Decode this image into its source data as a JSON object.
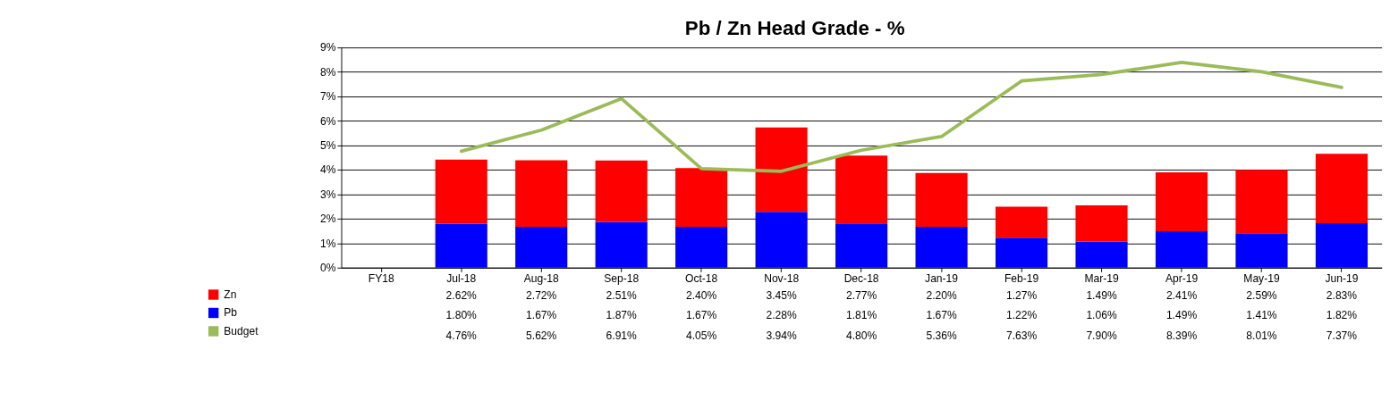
{
  "chart_data": {
    "type": "bar",
    "title": "Pb / Zn Head Grade - %",
    "stacked": true,
    "categories": [
      "FY18",
      "Jul-18",
      "Aug-18",
      "Sep-18",
      "Oct-18",
      "Nov-18",
      "Dec-18",
      "Jan-19",
      "Feb-19",
      "Mar-19",
      "Apr-19",
      "May-19",
      "Jun-19"
    ],
    "series": [
      {
        "name": "Pb",
        "color": "#0000ff",
        "values": [
          null,
          1.8,
          1.67,
          1.87,
          1.67,
          2.28,
          1.81,
          1.67,
          1.22,
          1.06,
          1.49,
          1.41,
          1.82
        ],
        "value_labels": [
          null,
          "1.80%",
          "1.67%",
          "1.87%",
          "1.67%",
          "2.28%",
          "1.81%",
          "1.67%",
          "1.22%",
          "1.06%",
          "1.49%",
          "1.41%",
          "1.82%"
        ]
      },
      {
        "name": "Zn",
        "color": "#ff0000",
        "values": [
          null,
          2.62,
          2.72,
          2.51,
          2.4,
          3.45,
          2.77,
          2.2,
          1.27,
          1.49,
          2.41,
          2.59,
          2.83
        ],
        "value_labels": [
          null,
          "2.62%",
          "2.72%",
          "2.51%",
          "2.40%",
          "3.45%",
          "2.77%",
          "2.20%",
          "1.27%",
          "1.49%",
          "2.41%",
          "2.59%",
          "2.83%"
        ]
      },
      {
        "name": "Budget",
        "type": "line",
        "color": "#9bbb59",
        "values": [
          null,
          4.76,
          5.62,
          6.91,
          4.05,
          3.94,
          4.8,
          5.36,
          7.63,
          7.9,
          8.39,
          8.01,
          7.37
        ],
        "value_labels": [
          null,
          "4.76%",
          "5.62%",
          "6.91%",
          "4.05%",
          "3.94%",
          "4.80%",
          "5.36%",
          "7.63%",
          "7.90%",
          "8.39%",
          "8.01%",
          "7.37%"
        ]
      }
    ],
    "ylim": [
      0,
      9
    ],
    "yticks": [
      {
        "value": 0,
        "label": "0%"
      },
      {
        "value": 1,
        "label": "1%"
      },
      {
        "value": 2,
        "label": "2%"
      },
      {
        "value": 3,
        "label": "3%"
      },
      {
        "value": 4,
        "label": "4%"
      },
      {
        "value": 5,
        "label": "5%"
      },
      {
        "value": 6,
        "label": "6%"
      },
      {
        "value": 7,
        "label": "7%"
      },
      {
        "value": 8,
        "label": "8%"
      },
      {
        "value": 9,
        "label": "9%"
      }
    ],
    "grid": "y",
    "legend": "bottom left",
    "line_style": "solid",
    "marker": "none"
  }
}
